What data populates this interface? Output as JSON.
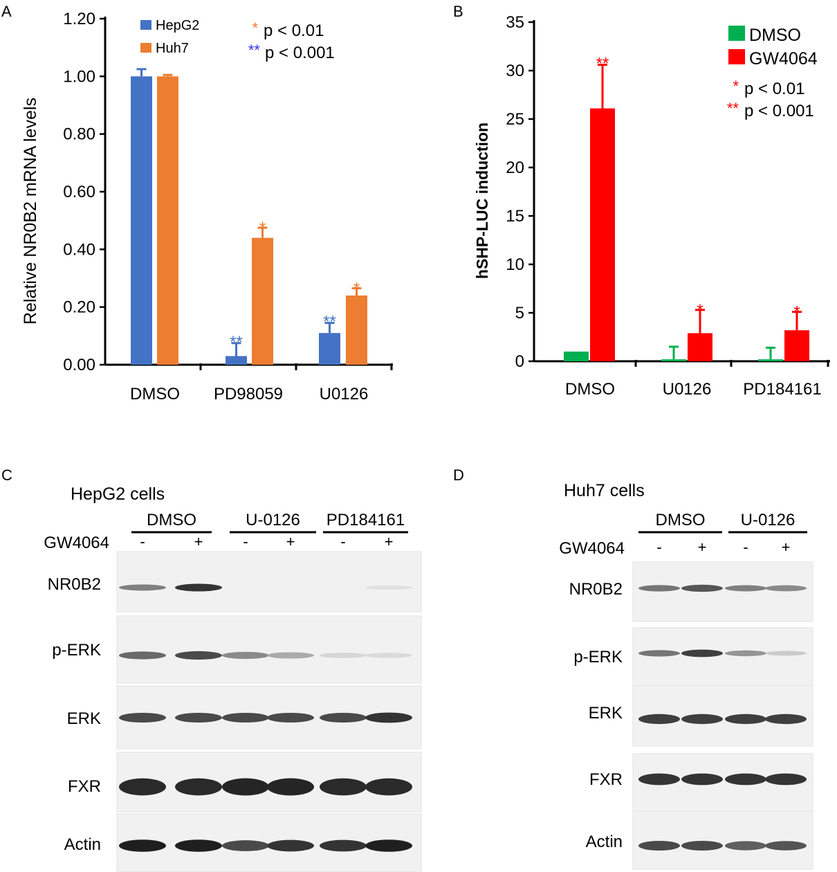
{
  "panels": {
    "A": "A",
    "B": "B",
    "C": "C",
    "D": "D"
  },
  "chart_data": [
    {
      "panel": "A",
      "type": "bar",
      "title": "",
      "xlabel": "",
      "ylabel": "Relative NR0B2 mRNA levels",
      "ylim": [
        0,
        1.2
      ],
      "yticks": [
        "0.00",
        "0.20",
        "0.40",
        "0.60",
        "0.80",
        "1.00",
        "1.20"
      ],
      "categories": [
        "DMSO",
        "PD98059",
        "U0126"
      ],
      "series": [
        {
          "name": "HepG2",
          "color": "#4472C4",
          "values": [
            1.0,
            0.03,
            0.11
          ],
          "errors": [
            0.025,
            0.045,
            0.035
          ],
          "markers": [
            "",
            "**",
            "**"
          ]
        },
        {
          "name": "Huh7",
          "color": "#ED7D31",
          "values": [
            1.0,
            0.44,
            0.24
          ],
          "errors": [
            0.005,
            0.035,
            0.025
          ],
          "markers": [
            "",
            "*",
            "*"
          ]
        }
      ],
      "legend_position": "top-left",
      "significance_legend": [
        {
          "marker": "*",
          "color": "#ED7D31",
          "label": "p < 0.01"
        },
        {
          "marker": "**",
          "color": "#3333ee",
          "label": "p < 0.001"
        }
      ]
    },
    {
      "panel": "B",
      "type": "bar",
      "title": "",
      "xlabel": "",
      "ylabel": "hSHP-LUC induction",
      "ylim": [
        0,
        35
      ],
      "yticks": [
        "0",
        "5",
        "10",
        "15",
        "20",
        "25",
        "30",
        "35"
      ],
      "categories": [
        "DMSO",
        "U0126",
        "PD184161"
      ],
      "series": [
        {
          "name": "DMSO",
          "color": "#00B050",
          "values": [
            1.0,
            0.2,
            0.2
          ],
          "errors": [
            0.0,
            1.3,
            1.2
          ],
          "markers": [
            "",
            "",
            ""
          ]
        },
        {
          "name": "GW4064",
          "color": "#FF0000",
          "values": [
            26.1,
            2.9,
            3.2
          ],
          "errors": [
            4.5,
            2.4,
            1.9
          ],
          "markers": [
            "**",
            "*",
            "*"
          ]
        }
      ],
      "legend_position": "top-right",
      "significance_legend": [
        {
          "marker": "*",
          "color": "#FF0000",
          "label": "p < 0.01"
        },
        {
          "marker": "**",
          "color": "#FF0000",
          "label": "p < 0.001"
        }
      ]
    }
  ],
  "blots": [
    {
      "panel": "C",
      "title": "HepG2 cells",
      "treatment_label": "GW4064",
      "groups": [
        "DMSO",
        "U-0126",
        "PD184161"
      ],
      "lane_signs": [
        "-",
        "+",
        "-",
        "+",
        "-",
        "+"
      ],
      "rows": [
        {
          "label": "NR0B2",
          "intensities": [
            0.5,
            0.85,
            0.0,
            0.0,
            0.0,
            0.05
          ]
        },
        {
          "label": "p-ERK",
          "intensities": [
            0.6,
            0.75,
            0.45,
            0.3,
            0.1,
            0.08
          ]
        },
        {
          "label": "ERK",
          "intensities": [
            0.75,
            0.75,
            0.75,
            0.75,
            0.75,
            0.85
          ]
        },
        {
          "label": "FXR",
          "intensities": [
            0.9,
            0.9,
            0.92,
            0.92,
            0.9,
            0.9
          ]
        },
        {
          "label": "Actin",
          "intensities": [
            0.95,
            0.95,
            0.75,
            0.85,
            0.85,
            0.95
          ]
        }
      ]
    },
    {
      "panel": "D",
      "title": "Huh7 cells",
      "treatment_label": "GW4064",
      "groups": [
        "DMSO",
        "U-0126"
      ],
      "lane_signs": [
        "-",
        "+",
        "-",
        "+"
      ],
      "rows": [
        {
          "label": "NR0B2",
          "intensities": [
            0.55,
            0.7,
            0.5,
            0.45
          ]
        },
        {
          "label": "p-ERK",
          "intensities": [
            0.55,
            0.8,
            0.4,
            0.15
          ]
        },
        {
          "label": "ERK",
          "intensities": [
            0.8,
            0.8,
            0.8,
            0.8
          ]
        },
        {
          "label": "FXR",
          "intensities": [
            0.85,
            0.85,
            0.85,
            0.85
          ]
        },
        {
          "label": "Actin",
          "intensities": [
            0.75,
            0.75,
            0.65,
            0.7
          ]
        }
      ]
    }
  ]
}
